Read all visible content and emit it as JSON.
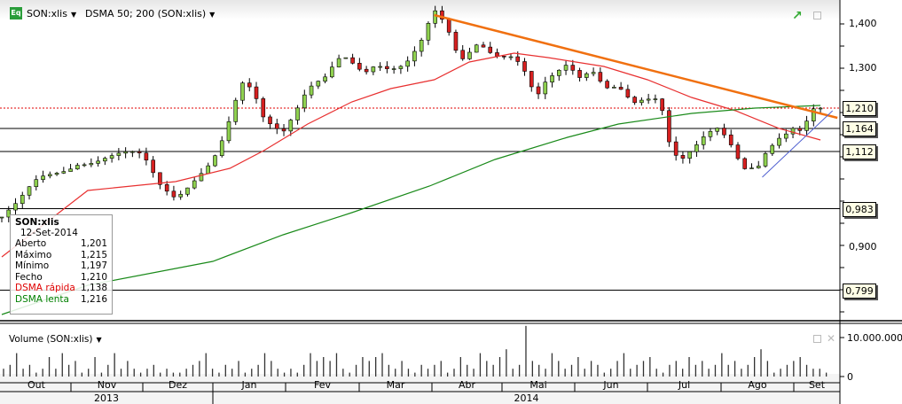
{
  "header": {
    "symbol": "SON:xlis",
    "indicator": "DSMA 50; 200 (SON:xlis)",
    "logo": "Eq"
  },
  "tooltip": {
    "symbol": "SON:xlis",
    "date": "12-Set-2014",
    "rows": [
      {
        "label": "Aberto",
        "value": "1,201",
        "color": "#000000"
      },
      {
        "label": "Máximo",
        "value": "1,215",
        "color": "#000000"
      },
      {
        "label": "Mínimo",
        "value": "1,197",
        "color": "#000000"
      },
      {
        "label": "Fecho",
        "value": "1,210",
        "color": "#000000"
      },
      {
        "label": "DSMA rápida",
        "value": "1,138",
        "color": "#e00000"
      },
      {
        "label": "DSMA lenta",
        "value": "1,216",
        "color": "#008000"
      }
    ]
  },
  "price_axis": {
    "ticks": [
      "1,400",
      "1,300",
      "0,900"
    ]
  },
  "level_tags": [
    {
      "value": "1,210",
      "price": 1.21
    },
    {
      "value": "1,164",
      "price": 1.164
    },
    {
      "value": "1,112",
      "price": 1.112
    },
    {
      "value": "0,983",
      "price": 0.983
    },
    {
      "value": "0,799",
      "price": 0.799
    }
  ],
  "volume": {
    "label": "Volume (SON:xlis)",
    "ticks": [
      "10.000.000",
      "0"
    ]
  },
  "months": [
    "Out",
    "Nov",
    "Dez",
    "Jan",
    "Fev",
    "Mar",
    "Abr",
    "Mai",
    "Jun",
    "Jul",
    "Ago",
    "Set"
  ],
  "years": [
    "2013",
    "2014"
  ],
  "colors": {
    "up": "#8fd14f",
    "down": "#d62020",
    "sma_fast": "#e83030",
    "sma_slow": "#1a8a1a",
    "trend_down": "#f07010",
    "trend_up": "#5060d0",
    "level": "#000000",
    "last": "#e00000"
  },
  "chart_data": {
    "type": "candlestick",
    "ylim": [
      0.72,
      1.43
    ],
    "close": [
      [
        "2013-10-01",
        0.964
      ],
      [
        "2013-10-08",
        0.984
      ],
      [
        "2013-10-17",
        1.04
      ],
      [
        "2013-11-04",
        1.1
      ],
      [
        "2013-11-19",
        1.094
      ],
      [
        "2013-12-01",
        1.094
      ],
      [
        "2013-12-08",
        1.044
      ],
      [
        "2013-12-15",
        1.024
      ],
      [
        "2013-12-22",
        1.054
      ],
      [
        "2014-01-01",
        1.084
      ],
      [
        "2014-01-06",
        1.134
      ],
      [
        "2014-01-10",
        1.204
      ],
      [
        "2014-01-14",
        1.264
      ],
      [
        "2014-01-19",
        1.23
      ],
      [
        "2014-01-22",
        1.194
      ],
      [
        "2014-01-30",
        1.174
      ],
      [
        "2014-02-05",
        1.214
      ],
      [
        "2014-02-10",
        1.254
      ],
      [
        "2014-02-17",
        1.264
      ],
      [
        "2014-02-24",
        1.314
      ],
      [
        "2014-03-03",
        1.294
      ],
      [
        "2014-03-08",
        1.324
      ],
      [
        "2014-03-14",
        1.314
      ],
      [
        "2014-03-20",
        1.314
      ],
      [
        "2014-03-26",
        1.344
      ],
      [
        "2014-04-02",
        1.414
      ],
      [
        "2014-04-07",
        1.384
      ],
      [
        "2014-04-13",
        1.314
      ],
      [
        "2014-04-21",
        1.374
      ],
      [
        "2014-04-28",
        1.344
      ],
      [
        "2014-05-06",
        1.324
      ],
      [
        "2014-05-11",
        1.274
      ],
      [
        "2014-05-15",
        1.214
      ],
      [
        "2014-05-19",
        1.254
      ],
      [
        "2014-05-22",
        1.274
      ],
      [
        "2014-05-28",
        1.314
      ],
      [
        "2014-06-03",
        1.294
      ],
      [
        "2014-06-08",
        1.314
      ],
      [
        "2014-06-14",
        1.264
      ],
      [
        "2014-06-19",
        1.254
      ],
      [
        "2014-06-25",
        1.204
      ],
      [
        "2014-07-01",
        1.214
      ],
      [
        "2014-07-06",
        1.224
      ],
      [
        "2014-07-10",
        1.134
      ],
      [
        "2014-07-14",
        1.104
      ],
      [
        "2014-07-19",
        1.134
      ],
      [
        "2014-07-25",
        1.164
      ],
      [
        "2014-07-30",
        1.164
      ],
      [
        "2014-08-05",
        1.114
      ],
      [
        "2014-08-10",
        1.054
      ],
      [
        "2014-08-16",
        1.064
      ],
      [
        "2014-08-20",
        1.114
      ],
      [
        "2014-08-25",
        1.154
      ],
      [
        "2014-09-01",
        1.184
      ],
      [
        "2014-09-04",
        1.174
      ],
      [
        "2014-09-09",
        1.214
      ],
      [
        "2014-09-12",
        1.21
      ]
    ],
    "sma_fast": [
      [
        "2013-10-01",
        0.874
      ],
      [
        "2013-11-08",
        1.024
      ],
      [
        "2013-12-15",
        1.044
      ],
      [
        "2014-01-08",
        1.074
      ],
      [
        "2014-01-22",
        1.114
      ],
      [
        "2014-02-10",
        1.174
      ],
      [
        "2014-02-28",
        1.224
      ],
      [
        "2014-03-14",
        1.254
      ],
      [
        "2014-04-02",
        1.274
      ],
      [
        "2014-04-17",
        1.314
      ],
      [
        "2014-05-06",
        1.334
      ],
      [
        "2014-05-20",
        1.324
      ],
      [
        "2014-06-13",
        1.304
      ],
      [
        "2014-07-01",
        1.274
      ],
      [
        "2014-07-19",
        1.234
      ],
      [
        "2014-08-07",
        1.204
      ],
      [
        "2014-08-25",
        1.164
      ],
      [
        "2014-09-12",
        1.138
      ]
    ],
    "sma_slow": [
      [
        "2013-10-01",
        0.744
      ],
      [
        "2013-11-08",
        0.81
      ],
      [
        "2014-01-01",
        0.864
      ],
      [
        "2014-01-30",
        0.924
      ],
      [
        "2014-02-28",
        0.974
      ],
      [
        "2014-03-30",
        1.034
      ],
      [
        "2014-04-28",
        1.094
      ],
      [
        "2014-05-28",
        1.144
      ],
      [
        "2014-06-19",
        1.174
      ],
      [
        "2014-07-19",
        1.198
      ],
      [
        "2014-08-15",
        1.21
      ],
      [
        "2014-09-12",
        1.216
      ]
    ],
    "trendlines": [
      {
        "from": [
          "2014-04-02",
          1.42
        ],
        "to": [
          "2014-09-19",
          1.188
        ]
      },
      {
        "from": [
          "2014-08-18",
          1.054
        ],
        "to": [
          "2014-09-17",
          1.204
        ]
      }
    ],
    "volume_millions": [
      2,
      3,
      6,
      2,
      3,
      1,
      2,
      5,
      2,
      6,
      3,
      4,
      1,
      2,
      5,
      1,
      3,
      6,
      2,
      4,
      2,
      1,
      2,
      3,
      1,
      2,
      1,
      1,
      2,
      3,
      4,
      6,
      2,
      1,
      3,
      2,
      4,
      1,
      2,
      3,
      6,
      4,
      2,
      1,
      2,
      1,
      3,
      6,
      4,
      5,
      4,
      6,
      2,
      1,
      3,
      5,
      4,
      5,
      6,
      3,
      2,
      4,
      2,
      1,
      3,
      2,
      3,
      4,
      1,
      2,
      5,
      3,
      2,
      6,
      4,
      3,
      5,
      7,
      2,
      3,
      13,
      4,
      3,
      2,
      6,
      4,
      2,
      3,
      5,
      2,
      4,
      3,
      1,
      2,
      4,
      6,
      2,
      3,
      4,
      5,
      2,
      1,
      3,
      4,
      2,
      5,
      3,
      4,
      2,
      3,
      6,
      3,
      4,
      2,
      3,
      5,
      7,
      4,
      1,
      2,
      3,
      4,
      5,
      3,
      2,
      2,
      1
    ]
  }
}
